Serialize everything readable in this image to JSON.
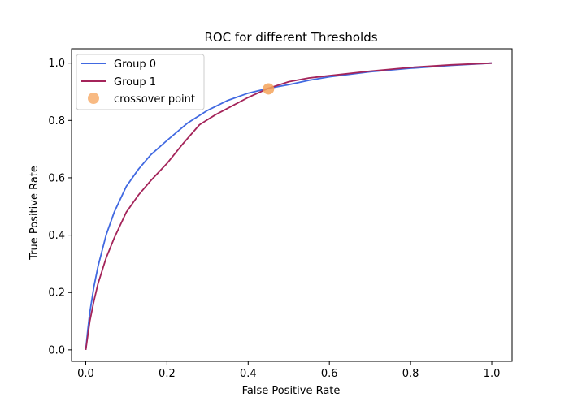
{
  "chart_data": {
    "type": "line",
    "title": "ROC for different Thresholds",
    "xlabel": "False Positive Rate",
    "ylabel": "True Positive Rate",
    "xlim": [
      -0.035,
      1.05
    ],
    "ylim": [
      -0.04,
      1.05
    ],
    "xticks": [
      0.0,
      0.2,
      0.4,
      0.6,
      0.8,
      1.0
    ],
    "yticks": [
      0.0,
      0.2,
      0.4,
      0.6,
      0.8,
      1.0
    ],
    "xtick_labels": [
      "0.0",
      "0.2",
      "0.4",
      "0.6",
      "0.8",
      "1.0"
    ],
    "ytick_labels": [
      "0.0",
      "0.2",
      "0.4",
      "0.6",
      "0.8",
      "1.0"
    ],
    "grid": false,
    "legend_position": "top-left",
    "series": [
      {
        "name": "Group 0",
        "color": "#4169e1",
        "x": [
          0.0,
          0.005,
          0.01,
          0.02,
          0.03,
          0.05,
          0.07,
          0.1,
          0.13,
          0.16,
          0.2,
          0.25,
          0.3,
          0.35,
          0.4,
          0.45,
          0.5,
          0.55,
          0.6,
          0.7,
          0.8,
          0.9,
          1.0
        ],
        "y": [
          0.0,
          0.07,
          0.13,
          0.22,
          0.29,
          0.4,
          0.48,
          0.57,
          0.63,
          0.68,
          0.73,
          0.79,
          0.835,
          0.87,
          0.895,
          0.912,
          0.925,
          0.94,
          0.952,
          0.97,
          0.982,
          0.992,
          1.0
        ]
      },
      {
        "name": "Group 1",
        "color": "#a4245a",
        "x": [
          0.0,
          0.005,
          0.01,
          0.02,
          0.03,
          0.05,
          0.07,
          0.1,
          0.13,
          0.16,
          0.2,
          0.24,
          0.28,
          0.32,
          0.36,
          0.4,
          0.45,
          0.5,
          0.55,
          0.6,
          0.7,
          0.8,
          0.9,
          1.0
        ],
        "y": [
          0.0,
          0.05,
          0.1,
          0.17,
          0.23,
          0.32,
          0.39,
          0.48,
          0.54,
          0.59,
          0.65,
          0.72,
          0.785,
          0.82,
          0.85,
          0.88,
          0.912,
          0.935,
          0.948,
          0.956,
          0.972,
          0.985,
          0.994,
          1.0
        ]
      }
    ],
    "points": [
      {
        "name": "crossover point",
        "x": 0.45,
        "y": 0.91,
        "color": "#f5a35a"
      }
    ]
  }
}
